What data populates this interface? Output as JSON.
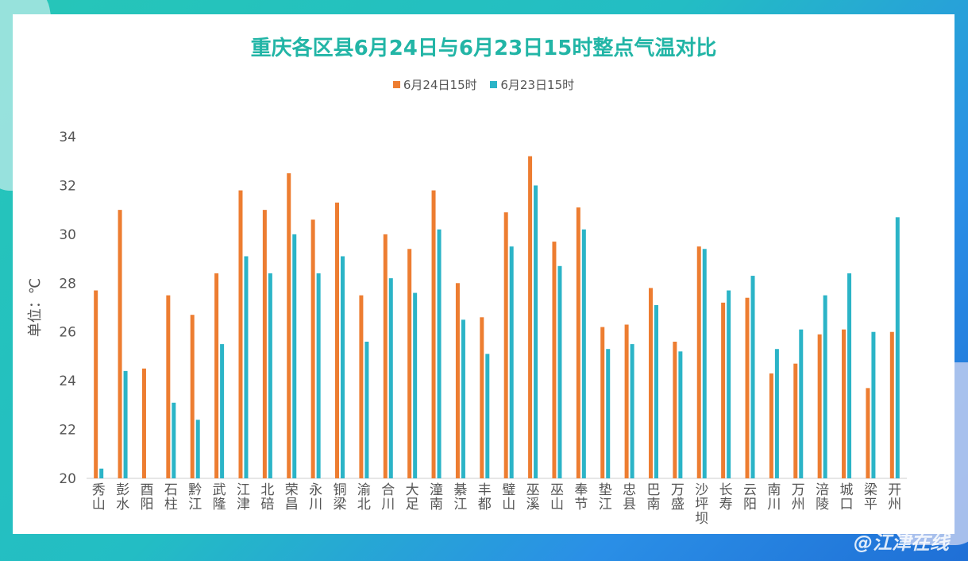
{
  "title": "重庆各区县6月24日与6月23日15时整点气温对比",
  "watermark": "@江津在线",
  "chart_data": {
    "type": "bar",
    "title": "重庆各区县6月24日与6月23日15时整点气温对比",
    "ylabel": "单位：℃",
    "xlabel": "",
    "ylim": [
      20,
      34
    ],
    "yticks": [
      20,
      22,
      24,
      26,
      28,
      30,
      32,
      34
    ],
    "grid": false,
    "legend": "top",
    "categories": [
      "秀山",
      "彭水",
      "酉阳",
      "石柱",
      "黔江",
      "武隆",
      "江津",
      "北碚",
      "荣昌",
      "永川",
      "铜梁",
      "渝北",
      "合川",
      "大足",
      "潼南",
      "綦江",
      "丰都",
      "璧山",
      "巫溪",
      "巫山",
      "奉节",
      "垫江",
      "忠县",
      "巴南",
      "万盛",
      "沙坪坝",
      "长寿",
      "云阳",
      "南川",
      "万州",
      "涪陵",
      "城口",
      "梁平",
      "开州"
    ],
    "series": [
      {
        "name": "6月24日15时",
        "color": "#ed7d31",
        "values": [
          27.7,
          31.0,
          24.5,
          27.5,
          26.7,
          28.4,
          31.8,
          31.0,
          32.5,
          30.6,
          31.3,
          27.5,
          30.0,
          29.4,
          31.8,
          28.0,
          26.6,
          30.9,
          33.2,
          29.7,
          31.1,
          26.2,
          26.3,
          27.8,
          25.6,
          29.5,
          27.2,
          27.4,
          24.3,
          24.7,
          25.9,
          26.1,
          23.7,
          26.0
        ]
      },
      {
        "name": "6月23日15时",
        "color": "#2bb4c7",
        "values": [
          20.4,
          24.4,
          null,
          23.1,
          22.4,
          25.5,
          29.1,
          28.4,
          30.0,
          28.4,
          29.1,
          25.6,
          28.2,
          27.6,
          30.2,
          26.5,
          25.1,
          29.5,
          32.0,
          28.7,
          30.2,
          25.3,
          25.5,
          27.1,
          25.2,
          29.4,
          27.7,
          28.3,
          25.3,
          26.1,
          27.5,
          28.4,
          26.0,
          30.7
        ]
      }
    ]
  }
}
